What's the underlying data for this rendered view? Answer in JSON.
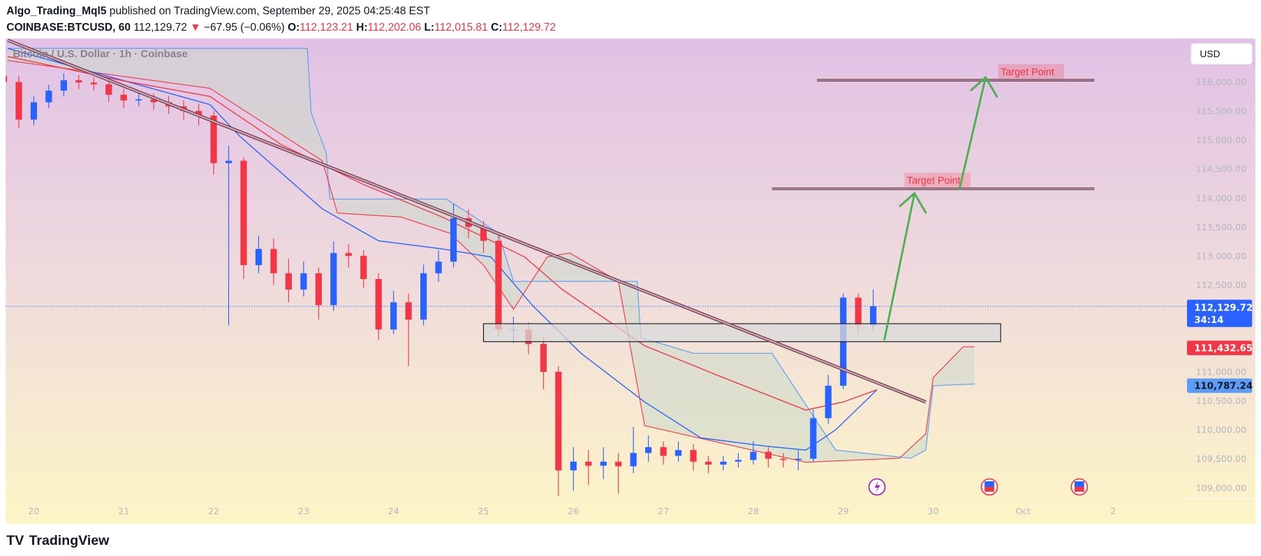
{
  "header": {
    "author": "Algo_Trading_Mql5",
    "published": " published on TradingView.com, September 29, 2025 04:25:48 EST",
    "symbol": "COINBASE:BTCUSD, 60",
    "last": " 112,129.72",
    "change": " −67.95 (−0.06%)",
    "o_label": " O:",
    "o": "112,123.21",
    "h_label": " H:",
    "h": "112,202.06",
    "l_label": " L:",
    "l": "112,015.81",
    "c_label": " C:",
    "c": "112,129.72"
  },
  "watermark": "Bitcoin / U.S. Dollar · 1h · Coinbase",
  "currency_button": "USD",
  "price_tags": {
    "last": "112,129.72",
    "countdown": "34:14",
    "red_line": "111,432.65",
    "blue_line": "110,787.24"
  },
  "footer": {
    "logo_text": "TradingView"
  },
  "colors": {
    "up": "#2962ff",
    "down": "#f23645",
    "ma_fast": "#2962ff",
    "ma_slow": "#f23645",
    "cloud": "#cfe3cf",
    "arrow": "#4caf50",
    "bg_top": "#e1c1e5",
    "bg_bottom": "#fdf5c6"
  },
  "events": [
    {
      "icon": "lightning-icon",
      "t": "2025-09-29 09:00"
    },
    {
      "icon": "us-flag-icon",
      "t": "2025-09-30 15:00"
    },
    {
      "icon": "us-flag-icon",
      "t": "2025-10-01 15:00"
    }
  ],
  "chart_data": {
    "type": "candlestick",
    "symbol": "COINBASE:BTCUSD",
    "ylim": [
      108700,
      116500
    ],
    "yticks": [
      116000,
      115500,
      115000,
      114500,
      114000,
      113500,
      113000,
      112500,
      112000,
      111500,
      111000,
      110500,
      110000,
      109500,
      109000
    ],
    "xticks": [
      {
        "t": "2025-09-20 00:00",
        "label": "20"
      },
      {
        "t": "2025-09-21 00:00",
        "label": "21"
      },
      {
        "t": "2025-09-22 00:00",
        "label": "22"
      },
      {
        "t": "2025-09-23 00:00",
        "label": "23"
      },
      {
        "t": "2025-09-24 00:00",
        "label": "24"
      },
      {
        "t": "2025-09-25 00:00",
        "label": "25"
      },
      {
        "t": "2025-09-26 00:00",
        "label": "26"
      },
      {
        "t": "2025-09-27 00:00",
        "label": "27"
      },
      {
        "t": "2025-09-28 00:00",
        "label": "28"
      },
      {
        "t": "2025-09-29 00:00",
        "label": "29"
      },
      {
        "t": "2025-09-30 00:00",
        "label": "30"
      },
      {
        "t": "2025-10-01 00:00",
        "label": "Oct"
      },
      {
        "t": "2025-10-02 00:00",
        "label": "2"
      }
    ],
    "candles": [
      [
        "2025-09-19 16:00",
        116100,
        116300,
        115900,
        116000
      ],
      [
        "2025-09-19 20:00",
        116000,
        116100,
        115200,
        115350
      ],
      [
        "2025-09-20 00:00",
        115350,
        115750,
        115250,
        115650
      ],
      [
        "2025-09-20 04:00",
        115650,
        115950,
        115550,
        115850
      ],
      [
        "2025-09-20 08:00",
        115850,
        116150,
        115750,
        116030
      ],
      [
        "2025-09-20 12:00",
        116030,
        116120,
        115880,
        115990
      ],
      [
        "2025-09-20 16:00",
        115990,
        116080,
        115850,
        115960
      ],
      [
        "2025-09-20 20:00",
        115960,
        116050,
        115650,
        115780
      ],
      [
        "2025-09-21 00:00",
        115780,
        115880,
        115550,
        115680
      ],
      [
        "2025-09-21 04:00",
        115680,
        115820,
        115580,
        115700
      ],
      [
        "2025-09-21 08:00",
        115700,
        115800,
        115520,
        115650
      ],
      [
        "2025-09-21 12:00",
        115650,
        115760,
        115450,
        115580
      ],
      [
        "2025-09-21 16:00",
        115580,
        115680,
        115350,
        115500
      ],
      [
        "2025-09-21 20:00",
        115500,
        115620,
        115250,
        115420
      ],
      [
        "2025-09-22 00:00",
        115420,
        115500,
        114400,
        114600
      ],
      [
        "2025-09-22 04:00",
        114600,
        114900,
        111800,
        114640
      ],
      [
        "2025-09-22 08:00",
        114640,
        114700,
        112600,
        112840
      ],
      [
        "2025-09-22 12:00",
        112840,
        113350,
        112700,
        113120
      ],
      [
        "2025-09-22 16:00",
        113120,
        113300,
        112500,
        112700
      ],
      [
        "2025-09-22 20:00",
        112700,
        112950,
        112200,
        112420
      ],
      [
        "2025-09-23 00:00",
        112420,
        112900,
        112300,
        112700
      ],
      [
        "2025-09-23 04:00",
        112700,
        112800,
        111900,
        112150
      ],
      [
        "2025-09-23 08:00",
        112150,
        113250,
        112050,
        113050
      ],
      [
        "2025-09-23 12:00",
        113050,
        113200,
        112800,
        113000
      ],
      [
        "2025-09-23 16:00",
        113000,
        113100,
        112450,
        112600
      ],
      [
        "2025-09-23 20:00",
        112600,
        112700,
        111550,
        111730
      ],
      [
        "2025-09-24 00:00",
        111730,
        112400,
        111650,
        112200
      ],
      [
        "2025-09-24 04:00",
        112200,
        112350,
        111100,
        111900
      ],
      [
        "2025-09-24 08:00",
        111900,
        112850,
        111800,
        112700
      ],
      [
        "2025-09-24 12:00",
        112700,
        113100,
        112550,
        112900
      ],
      [
        "2025-09-24 16:00",
        112900,
        113900,
        112800,
        113650
      ],
      [
        "2025-09-24 20:00",
        113650,
        113800,
        113300,
        113500
      ],
      [
        "2025-09-25 00:00",
        113500,
        113600,
        113050,
        113260
      ],
      [
        "2025-09-25 04:00",
        113260,
        113350,
        111600,
        111730
      ],
      [
        "2025-09-25 08:00",
        111730,
        111950,
        111500,
        111730
      ],
      [
        "2025-09-25 12:00",
        111730,
        111850,
        111300,
        111480
      ],
      [
        "2025-09-25 16:00",
        111480,
        111600,
        110700,
        111000
      ],
      [
        "2025-09-25 20:00",
        111000,
        111100,
        108860,
        109300
      ],
      [
        "2025-09-26 00:00",
        109300,
        109700,
        108950,
        109450
      ],
      [
        "2025-09-26 04:00",
        109450,
        109650,
        109050,
        109380
      ],
      [
        "2025-09-26 08:00",
        109380,
        109700,
        109150,
        109450
      ],
      [
        "2025-09-26 12:00",
        109450,
        109600,
        108900,
        109370
      ],
      [
        "2025-09-26 16:00",
        109370,
        110050,
        109250,
        109600
      ],
      [
        "2025-09-26 20:00",
        109600,
        109900,
        109450,
        109700
      ],
      [
        "2025-09-27 00:00",
        109700,
        109800,
        109400,
        109550
      ],
      [
        "2025-09-27 04:00",
        109550,
        109800,
        109450,
        109650
      ],
      [
        "2025-09-27 08:00",
        109650,
        109750,
        109300,
        109450
      ],
      [
        "2025-09-27 12:00",
        109450,
        109550,
        109250,
        109400
      ],
      [
        "2025-09-27 16:00",
        109400,
        109550,
        109300,
        109450
      ],
      [
        "2025-09-27 20:00",
        109450,
        109600,
        109350,
        109480
      ],
      [
        "2025-09-28 00:00",
        109480,
        109800,
        109400,
        109620
      ],
      [
        "2025-09-28 04:00",
        109620,
        109700,
        109350,
        109500
      ],
      [
        "2025-09-28 08:00",
        109500,
        109600,
        109350,
        109480
      ],
      [
        "2025-09-28 12:00",
        109480,
        109650,
        109300,
        109500
      ],
      [
        "2025-09-28 16:00",
        109500,
        110350,
        109450,
        110200
      ],
      [
        "2025-09-28 20:00",
        110200,
        110950,
        110100,
        110760
      ],
      [
        "2025-09-29 00:00",
        110760,
        112350,
        110700,
        112280
      ],
      [
        "2025-09-29 04:00",
        112280,
        112350,
        111650,
        111800
      ],
      [
        "2025-09-29 08:00",
        111800,
        112420,
        111700,
        112130
      ]
    ],
    "lines": [
      {
        "name": "ma-fast",
        "color": "#2962ff",
        "points": [
          [
            "2025-09-19 17:00",
            116580
          ],
          [
            "2025-09-21 23:00",
            115610
          ],
          [
            "2025-09-22 07:00",
            115060
          ],
          [
            "2025-09-23 05:00",
            113810
          ],
          [
            "2025-09-23 20:00",
            113260
          ],
          [
            "2025-09-24 13:00",
            113120
          ],
          [
            "2025-09-25 02:00",
            112980
          ],
          [
            "2025-09-25 13:00",
            112150
          ],
          [
            "2025-09-26 02:00",
            111320
          ],
          [
            "2025-09-26 19:00",
            110480
          ],
          [
            "2025-09-27 10:00",
            109860
          ],
          [
            "2025-09-28 03:00",
            109720
          ],
          [
            "2025-09-28 14:00",
            109650
          ],
          [
            "2025-09-28 22:00",
            110000
          ],
          [
            "2025-09-29 09:00",
            110690
          ]
        ]
      },
      {
        "name": "ma-slow",
        "color": "#f23645",
        "points": [
          [
            "2025-09-19 17:00",
            116440
          ],
          [
            "2025-09-20 23:00",
            116030
          ],
          [
            "2025-09-21 23:00",
            115750
          ],
          [
            "2025-09-22 18:00",
            114920
          ],
          [
            "2025-09-23 16:00",
            114230
          ],
          [
            "2025-09-24 13:00",
            113670
          ],
          [
            "2025-09-25 11:00",
            112980
          ],
          [
            "2025-09-25 21:00",
            112420
          ],
          [
            "2025-09-26 19:00",
            111450
          ],
          [
            "2025-09-27 16:00",
            110900
          ],
          [
            "2025-09-28 14:00",
            110340
          ],
          [
            "2025-09-29 00:00",
            110480
          ],
          [
            "2025-09-29 09:00",
            110690
          ]
        ]
      }
    ],
    "cloud": {
      "span_a": [
        [
          "2025-09-19 17:00",
          116580
        ],
        [
          "2025-09-23 01:00",
          116580
        ],
        [
          "2025-09-23 02:00",
          115470
        ],
        [
          "2025-09-23 06:00",
          114780
        ],
        [
          "2025-09-23 07:00",
          113980
        ],
        [
          "2025-09-24 14:00",
          113980
        ],
        [
          "2025-09-24 20:00",
          113740
        ],
        [
          "2025-09-25 04:00",
          113390
        ],
        [
          "2025-09-25 08:00",
          112560
        ],
        [
          "2025-09-26 17:00",
          112560
        ],
        [
          "2025-09-26 18:00",
          111590
        ],
        [
          "2025-09-27 08:00",
          111320
        ],
        [
          "2025-09-28 05:00",
          111320
        ],
        [
          "2025-09-28 22:00",
          109650
        ],
        [
          "2025-09-29 18:00",
          109510
        ],
        [
          "2025-09-29 22:00",
          109650
        ],
        [
          "2025-09-30 00:00",
          110760
        ],
        [
          "2025-09-30 11:00",
          110790
        ]
      ],
      "span_b": [
        [
          "2025-09-19 17:00",
          116370
        ],
        [
          "2025-09-21 23:00",
          115890
        ],
        [
          "2025-09-23 05:00",
          114640
        ],
        [
          "2025-09-23 09:00",
          113740
        ],
        [
          "2025-09-24 02:00",
          113670
        ],
        [
          "2025-09-24 15:00",
          113390
        ],
        [
          "2025-09-25 00:00",
          112840
        ],
        [
          "2025-09-25 08:00",
          112080
        ],
        [
          "2025-09-25 17:00",
          112980
        ],
        [
          "2025-09-25 23:00",
          113050
        ],
        [
          "2025-09-26 12:00",
          112560
        ],
        [
          "2025-09-26 19:00",
          110070
        ],
        [
          "2025-09-28 14:00",
          109440
        ],
        [
          "2025-09-29 15:00",
          109510
        ],
        [
          "2025-09-29 22:00",
          109930
        ],
        [
          "2025-09-30 00:00",
          110900
        ],
        [
          "2025-09-30 08:00",
          111430
        ],
        [
          "2025-09-30 11:00",
          111430
        ]
      ]
    },
    "trendline": [
      [
        "2025-09-19 17:00",
        116720
      ],
      [
        "2025-09-29 22:00",
        110480
      ]
    ],
    "zone": {
      "t1": "2025-09-25 00:00",
      "t2": "2025-09-30 18:00",
      "p_high": 111830,
      "p_low": 111520
    },
    "targets": [
      {
        "label": "Target Point",
        "price": 114157,
        "t1": "2025-09-28 05:00",
        "t2": "2025-10-01 19:00",
        "label_t": "2025-09-29 17:00"
      },
      {
        "label": "Target Point",
        "price": 116030,
        "t1": "2025-09-28 17:00",
        "t2": "2025-10-01 19:00",
        "label_t": "2025-09-30 18:00"
      }
    ],
    "arrows": [
      [
        [
          "2025-09-29 11:00",
          111560
        ],
        [
          "2025-09-29 19:00",
          114080
        ]
      ],
      [
        [
          "2025-09-30 07:00",
          114150
        ],
        [
          "2025-09-30 14:00",
          116080
        ]
      ]
    ],
    "last_price": 112129.72
  }
}
